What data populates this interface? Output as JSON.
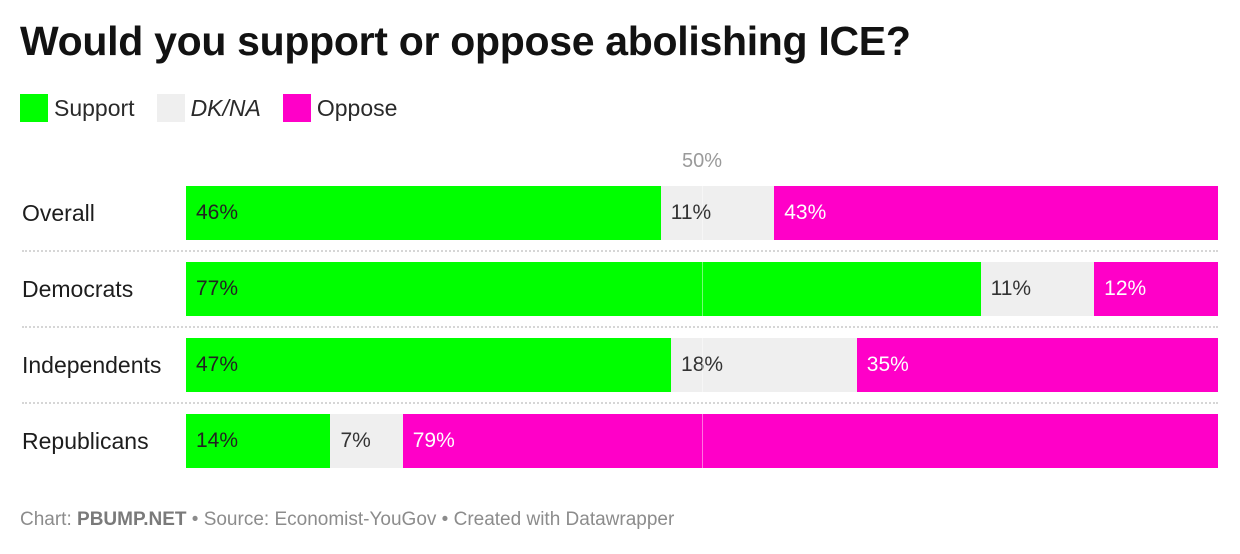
{
  "chart_data": {
    "type": "bar",
    "orientation": "horizontal-stacked",
    "title": "Would you support or oppose abolishing ICE?",
    "legend": [
      {
        "name": "Support",
        "color": "#00ff00",
        "italic": false
      },
      {
        "name": "DK/NA",
        "color": "#efefef",
        "italic": true
      },
      {
        "name": "Oppose",
        "color": "#ff00c8",
        "italic": false
      }
    ],
    "reference_label": "50%",
    "reference_value": 50,
    "xlim": [
      0,
      100
    ],
    "categories": [
      "Overall",
      "Democrats",
      "Independents",
      "Republicans"
    ],
    "series": [
      {
        "name": "Support",
        "values": [
          46,
          77,
          47,
          14
        ],
        "labels": [
          "46%",
          "77%",
          "47%",
          "14%"
        ],
        "text_color": "#222222"
      },
      {
        "name": "DK/NA",
        "values": [
          11,
          11,
          18,
          7
        ],
        "labels": [
          "11%",
          "11%",
          "18%",
          "7%"
        ],
        "text_color": "#333333"
      },
      {
        "name": "Oppose",
        "values": [
          43,
          12,
          35,
          79
        ],
        "labels": [
          "43%",
          "12%",
          "35%",
          "79%"
        ],
        "text_color": "#ffffff"
      }
    ]
  },
  "footer": {
    "prefix": "Chart: ",
    "brand": "PBUMP.NET",
    "rest": " • Source: Economist-YouGov • Created with Datawrapper"
  }
}
